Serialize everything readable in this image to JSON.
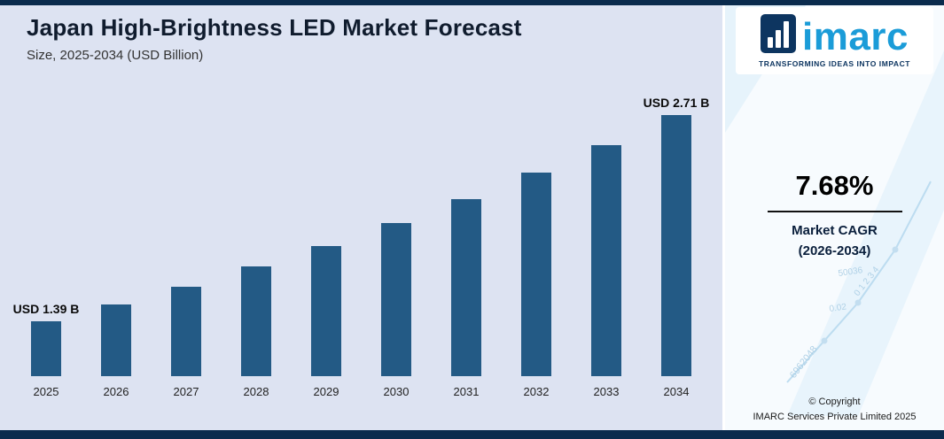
{
  "header": {
    "title": "Japan High-Brightness LED Market Forecast",
    "subtitle": "Size, 2025-2034 (USD Billion)"
  },
  "chart_data": {
    "type": "bar",
    "title": "Japan High-Brightness LED Market Forecast",
    "subtitle": "Size, 2025-2034 (USD Billion)",
    "unit": "USD Billion",
    "categories": [
      "2025",
      "2026",
      "2027",
      "2028",
      "2029",
      "2030",
      "2031",
      "2032",
      "2033",
      "2034"
    ],
    "values": [
      1.39,
      1.5,
      1.61,
      1.74,
      1.87,
      2.02,
      2.17,
      2.34,
      2.52,
      2.71
    ],
    "annotations": {
      "0": "USD 1.39 B",
      "9": "USD 2.71 B"
    },
    "bar_color": "#235a85",
    "ylim": [
      1.0,
      2.9
    ],
    "grid": false,
    "legend": "none",
    "xlabel": "",
    "ylabel": ""
  },
  "sidebar": {
    "logo": {
      "text": "imarc",
      "tagline": "TRANSFORMING IDEAS INTO IMPACT",
      "cyan": "#1b9cd8",
      "navy": "#0d3560"
    },
    "cagr": {
      "value": "7.68%",
      "label_line1": "Market CAGR",
      "label_line2": "(2026-2034)"
    },
    "copyright": {
      "line1": "© Copyright",
      "line2": "IMARC Services Private Limited 2025"
    },
    "watermark_numbers": [
      "6962048",
      "50036",
      "0.02",
      "0 1 2 3 4"
    ]
  },
  "colors": {
    "band": "#0a2b4d",
    "chart_background": "#dde3f2"
  }
}
